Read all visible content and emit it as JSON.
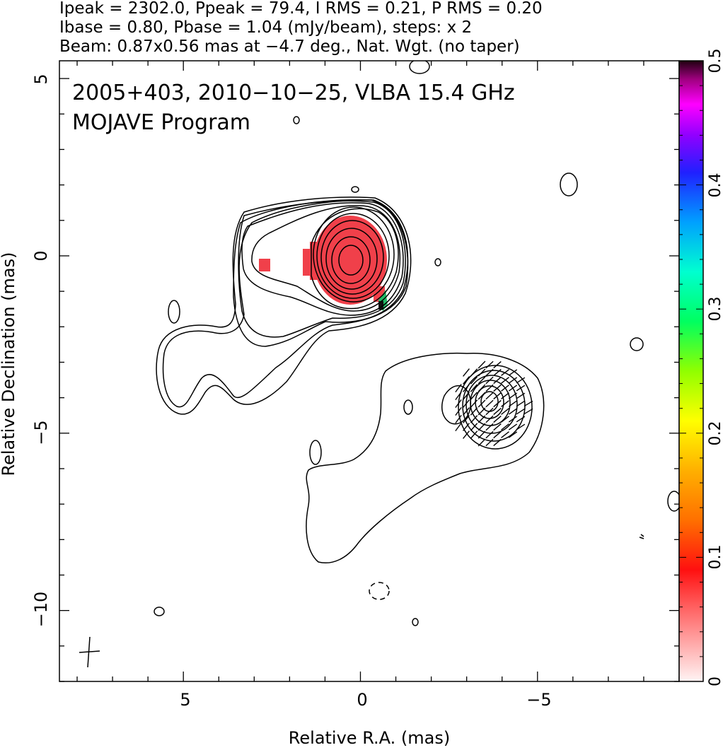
{
  "chart_data": {
    "type": "contour",
    "header": [
      "Ipeak = 2302.0, Ppeak = 79.4, I RMS = 0.21, P RMS = 0.20",
      "Ibase = 0.80, Pbase = 1.04 (mJy/beam), steps: x 2",
      "Beam: 0.87x0.56 mas at −4.7 deg., Nat. Wgt. (no taper)"
    ],
    "title": "2005+403, 2010−10−25, VLBA 15.4 GHz",
    "subtitle": "MOJAVE Program",
    "xlabel": "Relative R.A. (mas)",
    "ylabel": "Relative Declination (mas)",
    "xlim": [
      8.5,
      -9.0
    ],
    "ylim": [
      -12.0,
      5.5
    ],
    "x_ticks": [
      5,
      0,
      -5
    ],
    "x_tick_labels": [
      "5",
      "0",
      "−5"
    ],
    "y_ticks": [
      5,
      0,
      -5,
      -10
    ],
    "y_tick_labels": [
      "5",
      "0",
      "−5",
      "−10"
    ],
    "colorbar": {
      "min": 0,
      "max": 0.5,
      "ticks": [
        0,
        0.1,
        0.2,
        0.3,
        0.4,
        0.5
      ],
      "tick_labels": [
        "0",
        "0.1",
        "0.2",
        "0.3",
        "0.4",
        "0.5"
      ]
    },
    "colors": {
      "contour": "#000000",
      "polarization": "#f0404a",
      "polarization_light": "#f56e74"
    },
    "core": {
      "x": 0.3,
      "y": -0.15
    },
    "southern_component": {
      "x": -3.6,
      "y": -4.2
    },
    "beam": {
      "major_mas": 0.87,
      "minor_mas": 0.56,
      "pa_deg": -4.7,
      "x": 7.7,
      "y": -11.3
    }
  }
}
